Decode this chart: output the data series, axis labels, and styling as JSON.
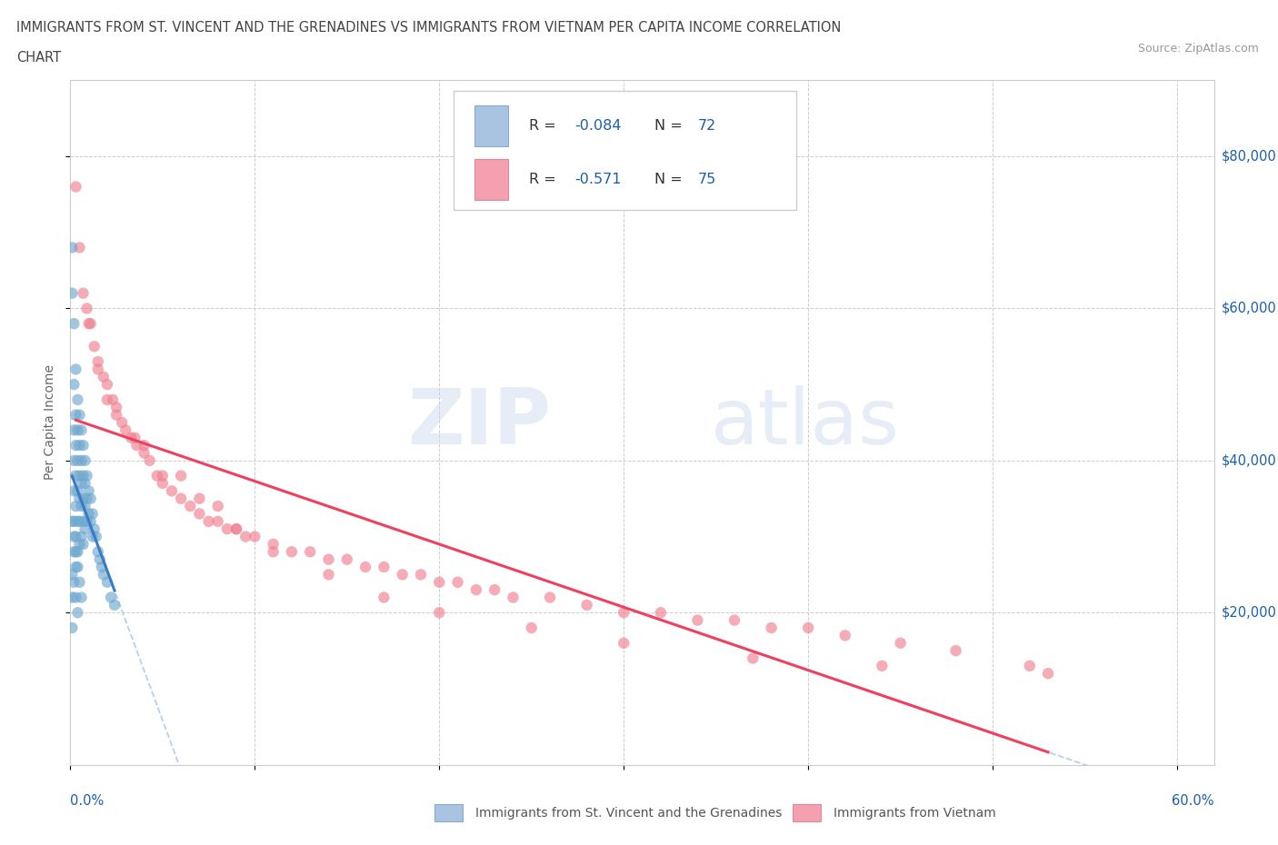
{
  "title_line1": "IMMIGRANTS FROM ST. VINCENT AND THE GRENADINES VS IMMIGRANTS FROM VIETNAM PER CAPITA INCOME CORRELATION",
  "title_line2": "CHART",
  "source": "Source: ZipAtlas.com",
  "ylabel": "Per Capita Income",
  "y_ticks": [
    "$20,000",
    "$40,000",
    "$60,000",
    "$80,000"
  ],
  "y_tick_vals": [
    20000,
    40000,
    60000,
    80000
  ],
  "legend1_color": "#a8c4e0",
  "legend2_color": "#f4a0b0",
  "scatter1_color": "#6fa8d0",
  "scatter2_color": "#f08090",
  "trendline1_color": "#3a7cc4",
  "trendline2_color": "#f04060",
  "dash_color": "#aaccee",
  "background_color": "#ffffff",
  "xlim": [
    0.0,
    0.62
  ],
  "ylim": [
    0,
    90000
  ],
  "footer_legend1": "Immigrants from St. Vincent and the Grenadines",
  "footer_legend2": "Immigrants from Vietnam",
  "R1": "-0.084",
  "N1": "72",
  "R2": "-0.571",
  "N2": "75",
  "scatter1_x": [
    0.001,
    0.001,
    0.001,
    0.001,
    0.001,
    0.002,
    0.002,
    0.002,
    0.002,
    0.002,
    0.002,
    0.002,
    0.003,
    0.003,
    0.003,
    0.003,
    0.003,
    0.003,
    0.003,
    0.004,
    0.004,
    0.004,
    0.004,
    0.004,
    0.004,
    0.005,
    0.005,
    0.005,
    0.005,
    0.005,
    0.005,
    0.006,
    0.006,
    0.006,
    0.006,
    0.006,
    0.007,
    0.007,
    0.007,
    0.007,
    0.007,
    0.008,
    0.008,
    0.008,
    0.008,
    0.009,
    0.009,
    0.009,
    0.01,
    0.01,
    0.011,
    0.011,
    0.012,
    0.012,
    0.013,
    0.014,
    0.015,
    0.016,
    0.017,
    0.018,
    0.02,
    0.022,
    0.024,
    0.001,
    0.002,
    0.002,
    0.003,
    0.003,
    0.004,
    0.004,
    0.005,
    0.006
  ],
  "scatter1_y": [
    68000,
    62000,
    32000,
    25000,
    18000,
    58000,
    50000,
    44000,
    40000,
    36000,
    32000,
    28000,
    52000,
    46000,
    42000,
    38000,
    34000,
    30000,
    26000,
    48000,
    44000,
    40000,
    36000,
    32000,
    28000,
    46000,
    42000,
    38000,
    35000,
    32000,
    29000,
    44000,
    40000,
    37000,
    34000,
    30000,
    42000,
    38000,
    35000,
    32000,
    29000,
    40000,
    37000,
    34000,
    31000,
    38000,
    35000,
    32000,
    36000,
    33000,
    35000,
    32000,
    33000,
    30000,
    31000,
    30000,
    28000,
    27000,
    26000,
    25000,
    24000,
    22000,
    21000,
    22000,
    30000,
    24000,
    28000,
    22000,
    26000,
    20000,
    24000,
    22000
  ],
  "scatter2_x": [
    0.003,
    0.005,
    0.007,
    0.009,
    0.011,
    0.013,
    0.015,
    0.018,
    0.02,
    0.023,
    0.025,
    0.028,
    0.03,
    0.033,
    0.036,
    0.04,
    0.043,
    0.047,
    0.05,
    0.055,
    0.06,
    0.065,
    0.07,
    0.075,
    0.08,
    0.085,
    0.09,
    0.095,
    0.1,
    0.11,
    0.12,
    0.13,
    0.14,
    0.15,
    0.16,
    0.17,
    0.18,
    0.19,
    0.2,
    0.21,
    0.22,
    0.23,
    0.24,
    0.26,
    0.28,
    0.3,
    0.32,
    0.34,
    0.36,
    0.38,
    0.4,
    0.42,
    0.45,
    0.48,
    0.52,
    0.015,
    0.025,
    0.04,
    0.06,
    0.08,
    0.01,
    0.02,
    0.035,
    0.05,
    0.07,
    0.09,
    0.11,
    0.14,
    0.17,
    0.2,
    0.25,
    0.3,
    0.37,
    0.44,
    0.53
  ],
  "scatter2_y": [
    76000,
    68000,
    62000,
    60000,
    58000,
    55000,
    53000,
    51000,
    50000,
    48000,
    47000,
    45000,
    44000,
    43000,
    42000,
    41000,
    40000,
    38000,
    37000,
    36000,
    35000,
    34000,
    33000,
    32000,
    32000,
    31000,
    31000,
    30000,
    30000,
    29000,
    28000,
    28000,
    27000,
    27000,
    26000,
    26000,
    25000,
    25000,
    24000,
    24000,
    23000,
    23000,
    22000,
    22000,
    21000,
    20000,
    20000,
    19000,
    19000,
    18000,
    18000,
    17000,
    16000,
    15000,
    13000,
    52000,
    46000,
    42000,
    38000,
    34000,
    58000,
    48000,
    43000,
    38000,
    35000,
    31000,
    28000,
    25000,
    22000,
    20000,
    18000,
    16000,
    14000,
    13000,
    12000
  ]
}
